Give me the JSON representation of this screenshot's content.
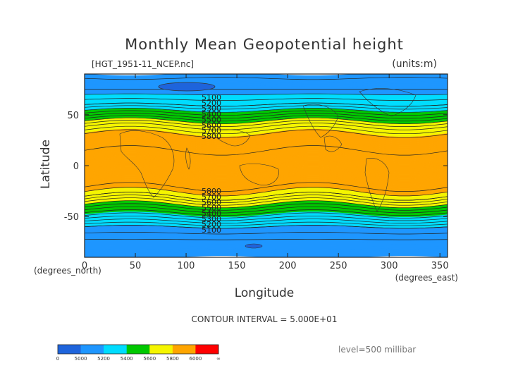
{
  "chart_data": {
    "type": "contour",
    "title": "Monthly Mean Geopotential height",
    "subtitle_left": "[HGT_1951-11_NCEP.nc]",
    "units": "(units:m)",
    "xlabel": "Longitude",
    "ylabel": "Latitude",
    "x_unit_left": "(degrees_north)",
    "x_unit_right": "(degrees_east)",
    "xlim": [
      0,
      357.5
    ],
    "ylim": [
      -90,
      90
    ],
    "xticks": [
      0,
      50,
      100,
      150,
      200,
      250,
      300,
      350
    ],
    "yticks": [
      50,
      0,
      -50
    ],
    "contour_interval": "CONTOUR INTERVAL = 5.000E+01",
    "level": "level=500 millibar",
    "contour_labels_north": [
      "5100",
      "5200",
      "5300",
      "5400",
      "5500",
      "5600",
      "5700",
      "5800"
    ],
    "contour_labels_south": [
      "5800",
      "5700",
      "5600",
      "5500",
      "5400",
      "5300",
      "5200",
      "5100"
    ],
    "bands": [
      {
        "min": 0,
        "max": 5000,
        "color": "#1e64dc"
      },
      {
        "min": 5000,
        "max": 5200,
        "color": "#1e96ff"
      },
      {
        "min": 5200,
        "max": 5400,
        "color": "#00dcff"
      },
      {
        "min": 5400,
        "max": 5600,
        "color": "#00c800"
      },
      {
        "min": 5600,
        "max": 5800,
        "color": "#f5f500"
      },
      {
        "min": 5800,
        "max": 6000,
        "color": "#ffa500"
      },
      {
        "min": 6000,
        "max": null,
        "color": "#ff0000"
      }
    ],
    "colorbar_labels": [
      "0",
      "5000",
      "5200",
      "5400",
      "5600",
      "5800",
      "6000",
      "∞"
    ],
    "latitude_profile": [
      {
        "lat": 90,
        "z": 5080
      },
      {
        "lat": 75,
        "z": 5150
      },
      {
        "lat": 60,
        "z": 5300
      },
      {
        "lat": 50,
        "z": 5480
      },
      {
        "lat": 40,
        "z": 5680
      },
      {
        "lat": 30,
        "z": 5820
      },
      {
        "lat": 0,
        "z": 5880
      },
      {
        "lat": -20,
        "z": 5860
      },
      {
        "lat": -30,
        "z": 5750
      },
      {
        "lat": -40,
        "z": 5560
      },
      {
        "lat": -50,
        "z": 5380
      },
      {
        "lat": -60,
        "z": 5200
      },
      {
        "lat": -75,
        "z": 5080
      },
      {
        "lat": -90,
        "z": 5050
      }
    ]
  }
}
